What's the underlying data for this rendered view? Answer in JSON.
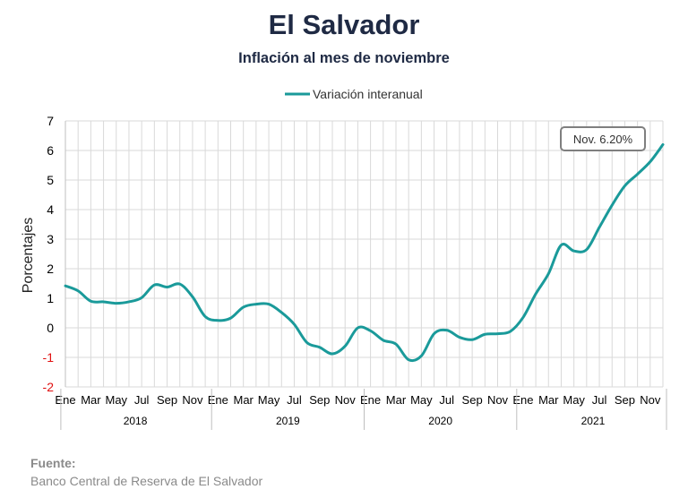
{
  "title": "El Salvador",
  "subtitle": "Inflación al mes de noviembre",
  "source": {
    "label": "Fuente:",
    "text": "Banco Central de Reserva de El Salvador"
  },
  "colors": {
    "series": "#1a9a9a",
    "grid": "#d9d9d9",
    "negative_tick": "#e01010",
    "axis_text": "#000000"
  },
  "chart_data": {
    "type": "line",
    "ylabel": "Porcentajes",
    "xlabel": "",
    "ylim": [
      -2,
      7
    ],
    "yticks": [
      -2,
      -1,
      0,
      1,
      2,
      3,
      4,
      5,
      6,
      7
    ],
    "grid": true,
    "legend": "top-center",
    "month_tick_labels": [
      "Ene",
      "Mar",
      "May",
      "Jul",
      "Sep",
      "Nov"
    ],
    "years": [
      "2018",
      "2019",
      "2020",
      "2021"
    ],
    "series": [
      {
        "name": "Variación interanual",
        "color": "#1a9a9a",
        "values": [
          1.42,
          1.25,
          0.9,
          0.88,
          0.83,
          0.88,
          1.02,
          1.45,
          1.38,
          1.48,
          1.05,
          0.38,
          0.25,
          0.33,
          0.7,
          0.8,
          0.8,
          0.52,
          0.12,
          -0.5,
          -0.66,
          -0.88,
          -0.62,
          0.0,
          -0.1,
          -0.42,
          -0.55,
          -1.08,
          -0.95,
          -0.2,
          -0.08,
          -0.32,
          -0.4,
          -0.22,
          -0.2,
          -0.12,
          0.35,
          1.15,
          1.83,
          2.8,
          2.6,
          2.65,
          3.4,
          4.15,
          4.8,
          5.2,
          5.62,
          6.2
        ]
      }
    ],
    "annotation": "Nov. 6.20%"
  }
}
